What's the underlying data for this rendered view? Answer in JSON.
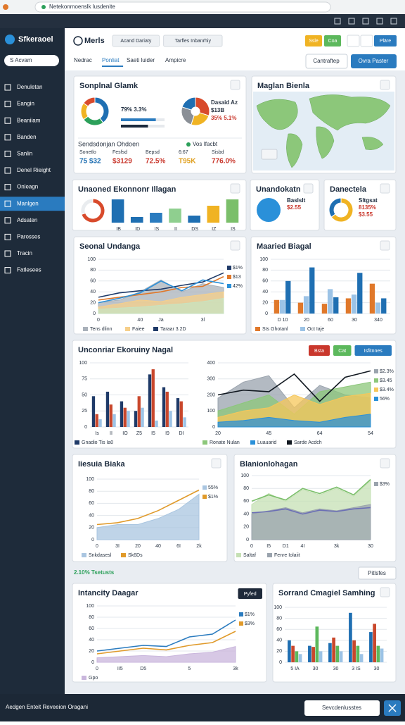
{
  "browser": {
    "url": "Netekonmoenslk lusdenite"
  },
  "sidebar": {
    "brand": "Sfkeraoel",
    "search": "S Acvam",
    "active": 7,
    "items": [
      "Denuletan",
      "Eangin",
      "Beaniiam",
      "Banden",
      "Sanlin",
      "Denel Rieight",
      "Onleagn",
      "Manlgen",
      "Adsaten",
      "Parosses",
      "Tracin",
      "Fatlesees"
    ]
  },
  "header": {
    "title": "Merls",
    "filters": [
      "Acand Dariaty",
      "Tarfles Inbanrhiy"
    ],
    "tabs": [
      "Nedrac",
      "Ponliat",
      "Saeti luider",
      "Ampicre"
    ],
    "active_tab": 1,
    "top_buttons": [
      {
        "label": "Ssle",
        "color": "#f0b323"
      },
      {
        "label": "Coa",
        "color": "#5cb85c"
      },
      {
        "label": "Pläre",
        "color": "#2a7bbf"
      }
    ],
    "actions": [
      "Cantraftep",
      "Ovra Paster"
    ]
  },
  "panels": [
    {
      "title": "Sonplnal Glamk",
      "charts": [
        {
          "type": "pie",
          "values": [
            40,
            25,
            20,
            15
          ],
          "colors": [
            "#1f6fb2",
            "#2ca05a",
            "#f0b323",
            "#d84a2b"
          ]
        },
        {
          "type": "pie",
          "values": [
            30,
            25,
            25,
            20
          ],
          "colors": [
            "#d84a2b",
            "#f0b323",
            "#8a8f96",
            "#1f6fb2"
          ]
        }
      ],
      "stats": [
        "79% 3.3%"
      ],
      "progress": [
        80,
        62
      ],
      "side_stats": [
        "Dasaid Az",
        "$13B",
        "35% 5.1%"
      ],
      "kpi_title": "Sendsdonjan Ohdoen",
      "kpi_note": "Vos Ifacbt",
      "kpis": [
        {
          "label": "Sonetlo",
          "value": "75 $32",
          "color": "#1f6fb2"
        },
        {
          "label": "Fesfsd",
          "value": "$3129",
          "color": "#c9372c"
        },
        {
          "label": "Bepsd",
          "value": "72.5%",
          "color": "#c9372c"
        },
        {
          "label": "6:67",
          "value": "T95K",
          "color": "#e0a020"
        },
        {
          "label": "Sisbd",
          "value": "776.0%",
          "color": "#c9372c"
        }
      ]
    },
    {
      "title": "Maglan Bienla",
      "charts": []
    },
    {
      "title": "Unaoned Ekonnonr Illagan",
      "charts": [
        {
          "type": "pie",
          "values": [
            70,
            30
          ],
          "colors": [
            "#d84a2b",
            "#e9ecef"
          ]
        },
        {
          "type": "bar",
          "categories": [
            "IB",
            "ID",
            "IS",
            "II",
            "DS",
            "IZ",
            "IS"
          ],
          "ylim": [
            0,
            40
          ],
          "colors": [
            "#1f6fb2",
            "#1f6fb2",
            "#2a7bbf",
            "#8fcf8f",
            "#1f6fb2",
            "#f0b323",
            "#7bbf6a"
          ],
          "series": [
            {
              "values": [
                33,
                8,
                14,
                20,
                10,
                24,
                33
              ]
            }
          ]
        }
      ]
    },
    {
      "title": "Unandokatn",
      "charts": [
        {
          "type": "pie",
          "values": [
            100
          ],
          "colors": [
            "#2a90d9"
          ]
        }
      ],
      "stats": [
        "Baslslt",
        "$2.55"
      ]
    },
    {
      "title": "Danectela",
      "charts": [
        {
          "type": "pie",
          "values": [
            65,
            35
          ],
          "colors": [
            "#f0b323",
            "#1f6fb2"
          ]
        }
      ],
      "stats": [
        "Sltgsat",
        "8135%",
        "$3.55"
      ]
    },
    {
      "title": "Seonal Undanga",
      "charts": [
        {
          "type": "line",
          "categories": [
            "0",
            null,
            "40",
            "Ja",
            null,
            "3l",
            null
          ],
          "ylim": [
            0,
            100
          ],
          "yticks": [
            0,
            20,
            40,
            60,
            80,
            100
          ],
          "series": [
            {
              "name": "Tens dlinn",
              "style": "area",
              "color": "#a9b1ba",
              "values": [
                20,
                25,
                40,
                62,
                40,
                55,
                48
              ]
            },
            {
              "name": "Faiee",
              "style": "area",
              "color": "#f6cf8a",
              "values": [
                12,
                18,
                25,
                22,
                30,
                35,
                40
              ]
            },
            {
              "style": "area",
              "color": "#c8e3c0",
              "values": [
                8,
                10,
                12,
                15,
                18,
                22,
                28
              ]
            },
            {
              "name": "Taraar 3.2D",
              "style": "line",
              "color": "#1f3a68",
              "values": [
                30,
                38,
                42,
                45,
                52,
                58,
                75
              ],
              "end_label": "$1%"
            },
            {
              "style": "line",
              "color": "#e0782a",
              "values": [
                25,
                30,
                35,
                40,
                48,
                50,
                68
              ],
              "end_label": "$13"
            },
            {
              "style": "line",
              "color": "#2a90d9",
              "values": [
                20,
                28,
                38,
                60,
                42,
                62,
                55
              ],
              "end_label": "42%"
            }
          ]
        }
      ]
    },
    {
      "title": "Maaried Biagal",
      "charts": [
        {
          "type": "bar",
          "categories": [
            "D 10",
            "20",
            "60",
            "30",
            "340"
          ],
          "ylim": [
            0,
            100
          ],
          "yticks": [
            0,
            20,
            40,
            60,
            80,
            100
          ],
          "series": [
            {
              "name": "Sts Ghotanl",
              "color": "#e0782a",
              "values": [
                25,
                20,
                18,
                28,
                55
              ]
            },
            {
              "name": "Oct Iaje",
              "color": "#9cc3e6",
              "values": [
                25,
                32,
                45,
                35,
                20
              ]
            },
            {
              "color": "#1f6fb2",
              "values": [
                60,
                85,
                30,
                75,
                28
              ]
            }
          ]
        }
      ]
    },
    {
      "title": "Unconriar Ekoruiny Nagal",
      "buttons": [
        {
          "label": "Bsta",
          "color": "#c9372c"
        },
        {
          "label": "Cat",
          "color": "#5cb85c"
        },
        {
          "label": "Isfitnnes",
          "color": "#2a7bbf"
        }
      ],
      "charts": [
        {
          "type": "bar",
          "categories": [
            "Is",
            "II",
            "IO",
            "Z5",
            "I5",
            "I9",
            "DI"
          ],
          "ylim": [
            0,
            100
          ],
          "yticks": [
            0,
            25,
            50,
            75,
            100
          ],
          "series": [
            {
              "name": "Gnadio Tis Ia0",
              "color": "#1f3a68",
              "values": [
                48,
                55,
                40,
                25,
                82,
                62,
                45
              ]
            },
            {
              "color": "#c9472c",
              "values": [
                20,
                35,
                30,
                48,
                90,
                55,
                40
              ]
            },
            {
              "color": "#9cc3e6",
              "values": [
                12,
                20,
                25,
                30,
                10,
                25,
                15
              ]
            }
          ]
        },
        {
          "type": "line",
          "categories": [
            "20",
            null,
            "45",
            null,
            "64",
            null,
            "54"
          ],
          "ylim": [
            0,
            400
          ],
          "yticks": [
            0,
            100,
            200,
            300,
            400
          ],
          "series": [
            {
              "style": "area",
              "color": "#9aa3ad",
              "values": [
                180,
                280,
                320,
                120,
                260,
                200,
                180
              ],
              "end_label": "$2.3%"
            },
            {
              "name": "Ronate Nulan",
              "style": "area",
              "color": "#8cc77a",
              "values": [
                100,
                150,
                200,
                80,
                220,
                250,
                280
              ],
              "end_label": "$3.45"
            },
            {
              "style": "area",
              "color": "#f6c75a",
              "values": [
                60,
                100,
                120,
                200,
                140,
                190,
                210
              ],
              "end_label": "$3.4%"
            },
            {
              "name": "Luauarid",
              "style": "area",
              "color": "#2a90d9",
              "values": [
                30,
                40,
                60,
                40,
                30,
                60,
                80
              ],
              "end_label": "56%"
            },
            {
              "name": "Sarde Acdch",
              "style": "line",
              "color": "#111820",
              "values": [
                200,
                230,
                220,
                330,
                160,
                310,
                350
              ]
            }
          ]
        }
      ]
    },
    {
      "title": "Iiesuia Biaka",
      "charts": [
        {
          "type": "line",
          "categories": [
            "0",
            "3I",
            "20",
            "40",
            "6I",
            "2k"
          ],
          "ylim": [
            0,
            100
          ],
          "yticks": [
            0,
            20,
            40,
            60,
            80,
            100
          ],
          "series": [
            {
              "name": "Snkdasesl",
              "style": "area",
              "color": "#a9c5e0",
              "values": [
                20,
                25,
                25,
                35,
                50,
                75
              ],
              "end_label": "55%"
            },
            {
              "name": "Sk6Ds",
              "style": "line",
              "color": "#e09a2a",
              "values": [
                25,
                28,
                35,
                48,
                65,
                82
              ],
              "end_label": "$1%"
            }
          ]
        }
      ]
    },
    {
      "title": "Blanionlohagan",
      "charts": [
        {
          "type": "line",
          "categories": [
            "0",
            "I5",
            "D1",
            "4I",
            null,
            "3k",
            null,
            "30"
          ],
          "ylim": [
            0,
            100
          ],
          "yticks": [
            0,
            20,
            40,
            60,
            80,
            100
          ],
          "series": [
            {
              "name": "Saltaf",
              "style": "area",
              "color": "#c5e0b4",
              "values": [
                55,
                72,
                60,
                78,
                70,
                80,
                68,
                92
              ]
            },
            {
              "name": "Fenre Iolaiit",
              "style": "area",
              "color": "#9aa3ad",
              "values": [
                40,
                45,
                50,
                42,
                48,
                45,
                50,
                55
              ],
              "end_label": "$3%"
            },
            {
              "style": "line",
              "color": "#6b6fb5",
              "values": [
                42,
                44,
                48,
                40,
                46,
                44,
                48,
                50
              ]
            },
            {
              "style": "line",
              "color": "#7bbf6a",
              "values": [
                60,
                70,
                62,
                80,
                72,
                82,
                70,
                94
              ]
            }
          ]
        }
      ]
    },
    {
      "title": "Intancity Daagar",
      "buttons": [
        {
          "label": "Pyfed",
          "color": "#1f2a3a"
        }
      ],
      "charts": [
        {
          "type": "line",
          "categories": [
            "0",
            "II5",
            "D5",
            null,
            "5",
            null,
            "3k"
          ],
          "ylim": [
            0,
            100
          ],
          "yticks": [
            0,
            20,
            40,
            60,
            80,
            100
          ],
          "series": [
            {
              "name": "Gpo",
              "style": "area",
              "color": "#c9b6dc",
              "values": [
                8,
                10,
                12,
                10,
                15,
                18,
                28
              ]
            },
            {
              "style": "line",
              "color": "#2a7bbf",
              "values": [
                20,
                25,
                30,
                28,
                45,
                50,
                75
              ],
              "end_label": "$1%"
            },
            {
              "style": "line",
              "color": "#e09a2a",
              "values": [
                15,
                20,
                25,
                22,
                30,
                35,
                55
              ],
              "end_label": "$3%"
            }
          ]
        }
      ]
    },
    {
      "title": "Sorrand Cmagiel Samhing",
      "charts": [
        {
          "type": "bar",
          "categories": [
            "5 IA",
            "30",
            "30",
            "3 IS",
            "30"
          ],
          "ylim": [
            0,
            100
          ],
          "yticks": [
            0,
            20,
            40,
            60,
            80,
            100
          ],
          "series": [
            {
              "color": "#1f6fb2",
              "values": [
                40,
                30,
                35,
                90,
                55
              ]
            },
            {
              "color": "#c9472c",
              "values": [
                30,
                28,
                45,
                40,
                70
              ]
            },
            {
              "color": "#5cb85c",
              "values": [
                20,
                65,
                30,
                30,
                30
              ]
            },
            {
              "color": "#9cc3e6",
              "values": [
                15,
                20,
                20,
                15,
                25
              ]
            }
          ]
        }
      ]
    }
  ],
  "section_note": "2.10% Tsetusts",
  "section_button": "Pitlsfes",
  "footer": {
    "text": "Aedgen Enteit Reveeion Oragani",
    "button": "Sevcdenlusstes"
  }
}
